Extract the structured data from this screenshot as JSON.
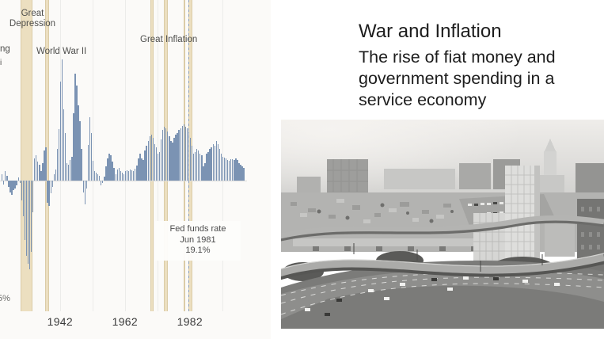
{
  "header": {
    "title": "War and Inflation",
    "subtitle_lines": [
      "The rise of fiat money and",
      "government spending in a",
      "service economy"
    ]
  },
  "chart": {
    "colors": {
      "bar": "#7b93b3",
      "recession_band": "#ecdfc0",
      "band_edge": "#dbcca7",
      "label_text": "#4e4e4c",
      "tick_text": "#3a3a3a",
      "background": "#fbfaf8"
    }
  },
  "chart_data": {
    "type": "bar",
    "unit": "%",
    "x_axis": {
      "start_year": 1924,
      "end_year": 1999,
      "tick_years": [
        1942,
        1962,
        1982
      ],
      "tick_labels": [
        "1942",
        "1962",
        "1982"
      ]
    },
    "y_axis": {
      "visible_label": "5%",
      "zero_baseline": true,
      "approx_range": [
        -15,
        16
      ]
    },
    "bars_per_year": 2,
    "values": [
      0.8,
      -0.5,
      1.2,
      0.6,
      -0.8,
      -1.5,
      -1.8,
      -1.2,
      -1.0,
      -0.6,
      0.4,
      -0.3,
      -2.5,
      -4.5,
      -7.5,
      -9.5,
      -10.5,
      -11.2,
      -9.0,
      -4.0,
      2.8,
      3.2,
      2.4,
      2.0,
      1.2,
      2.2,
      3.8,
      4.2,
      -2.8,
      -3.2,
      -1.6,
      -0.8,
      0.8,
      1.4,
      4.0,
      6.5,
      12.5,
      15.3,
      9.0,
      6.0,
      2.2,
      2.0,
      2.6,
      3.0,
      8.5,
      13.5,
      12.0,
      9.5,
      7.5,
      4.0,
      -1.5,
      -3.0,
      -1.0,
      4.5,
      8.0,
      6.0,
      2.5,
      1.2,
      1.0,
      0.8,
      0.6,
      -0.6,
      -0.3,
      0.5,
      1.8,
      2.8,
      3.4,
      3.2,
      2.4,
      1.6,
      0.8,
      1.4,
      1.6,
      1.2,
      1.0,
      0.8,
      1.2,
      1.3,
      1.2,
      1.4,
      1.3,
      1.2,
      1.5,
      1.9,
      2.8,
      3.4,
      2.8,
      2.6,
      3.8,
      4.4,
      5.0,
      5.6,
      5.8,
      5.4,
      4.6,
      4.2,
      3.4,
      3.6,
      5.2,
      6.4,
      6.8,
      6.6,
      6.2,
      5.6,
      5.0,
      4.8,
      5.4,
      5.8,
      6.0,
      6.4,
      6.6,
      6.9,
      7.1,
      6.8,
      6.6,
      6.2,
      5.4,
      4.4,
      3.4,
      3.6,
      4.0,
      3.8,
      3.4,
      3.2,
      1.8,
      2.2,
      3.4,
      3.6,
      4.0,
      4.2,
      4.6,
      4.4,
      5.0,
      4.6,
      4.0,
      3.4,
      3.0,
      2.9,
      2.8,
      2.6,
      2.5,
      2.7,
      2.7,
      2.6,
      2.8,
      2.6,
      2.2,
      2.0,
      1.8,
      1.6
    ],
    "recession_bands_years": [
      [
        1929.8,
        1933.4
      ],
      [
        1937.5,
        1938.7
      ],
      [
        1969.9,
        1970.9
      ],
      [
        1973.9,
        1975.3
      ],
      [
        1980.0,
        1980.6
      ],
      [
        1981.5,
        1982.9
      ]
    ],
    "event_line": {
      "year": 1981.45,
      "label": [
        "Fed funds rate",
        "Jun 1981",
        "19.1%"
      ]
    },
    "era_annotations": [
      {
        "label": "Great Depression",
        "year": 1931
      },
      {
        "label": "World War II",
        "year": 1943
      },
      {
        "label": "Great Inflation",
        "year": 1976
      }
    ],
    "cropped_left_labels": [
      "ng",
      "i"
    ]
  }
}
